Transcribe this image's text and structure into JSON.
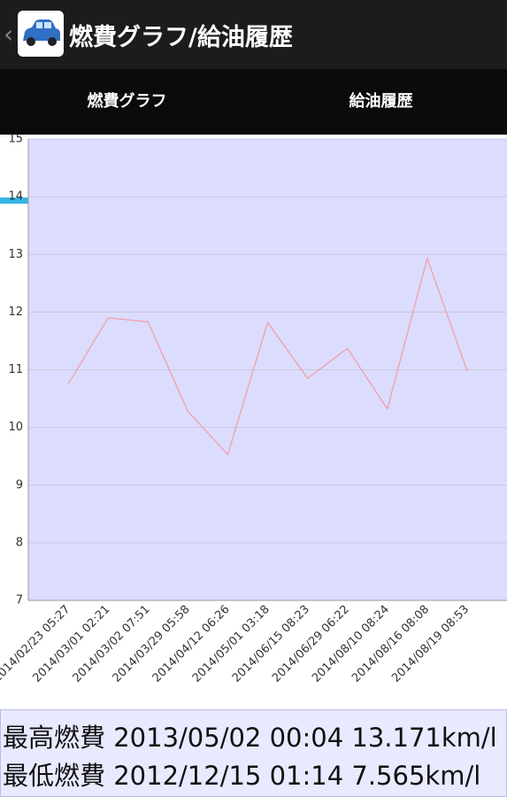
{
  "header": {
    "title": "燃費グラフ/給油履歴"
  },
  "tabs": [
    "燃費グラフ",
    "給油履歴"
  ],
  "chart_data": {
    "type": "line",
    "categories": [
      "2014/02/23 05:27",
      "2014/03/01 02:21",
      "2014/03/02 07:51",
      "2014/03/29 05:58",
      "2014/04/12 06:26",
      "2014/05/01 03:18",
      "2014/06/15 08:23",
      "2014/06/29 06:22",
      "2014/08/10 08:24",
      "2014/08/16 08:08",
      "2014/08/19 08:53"
    ],
    "values": [
      10.75,
      11.9,
      11.83,
      10.28,
      9.53,
      11.82,
      10.85,
      11.37,
      10.32,
      12.93,
      10.98
    ],
    "color": "#f0a0a8",
    "ylim": [
      7,
      15
    ],
    "yticks": [
      7,
      8,
      9,
      10,
      11,
      12,
      13,
      14,
      15
    ],
    "grid": true
  },
  "stats": [
    "最高燃費 2013/05/02 00:04 13.171km/l",
    "最低燃費 2012/12/15 01:14 7.565km/l"
  ]
}
